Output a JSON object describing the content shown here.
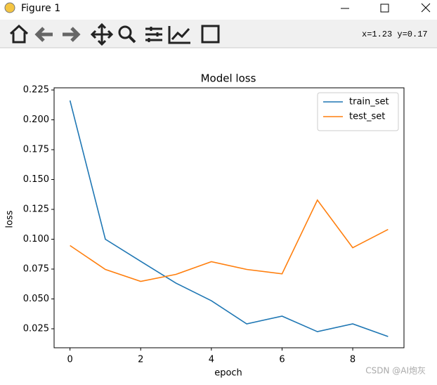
{
  "window": {
    "title": "Figure 1",
    "coords": "x=1.23 y=0.17"
  },
  "watermark": "CSDN @AI炮灰",
  "chart_data": {
    "type": "line",
    "title": "Model loss",
    "x_label": "epoch",
    "y_label": "loss",
    "x": [
      0,
      1,
      2,
      3,
      4,
      5,
      6,
      7,
      8,
      9
    ],
    "series": [
      {
        "name": "train_set",
        "color": "#1f77b4",
        "values": [
          0.2162,
          0.1,
          0.0815,
          0.0632,
          0.0485,
          0.0291,
          0.0356,
          0.0226,
          0.0291,
          0.0185
        ]
      },
      {
        "name": "test_set",
        "color": "#ff7f0e",
        "values": [
          0.0947,
          0.0747,
          0.0647,
          0.0706,
          0.0812,
          0.0747,
          0.071,
          0.1328,
          0.0929,
          0.1082
        ]
      }
    ],
    "xlim": [
      -0.45,
      9.45
    ],
    "ylim": [
      0.0091,
      0.2268
    ],
    "xticks": [
      0,
      2,
      4,
      6,
      8
    ],
    "yticks": [
      {
        "value": 0.025,
        "label": "0.025"
      },
      {
        "value": 0.05,
        "label": "0.050"
      },
      {
        "value": 0.075,
        "label": "0.075"
      },
      {
        "value": 0.1,
        "label": "0.100"
      },
      {
        "value": 0.125,
        "label": "0.125"
      },
      {
        "value": 0.15,
        "label": "0.150"
      },
      {
        "value": 0.175,
        "label": "0.175"
      },
      {
        "value": 0.2,
        "label": "0.200"
      },
      {
        "value": 0.225,
        "label": "0.225"
      }
    ],
    "legend": "upper right"
  }
}
